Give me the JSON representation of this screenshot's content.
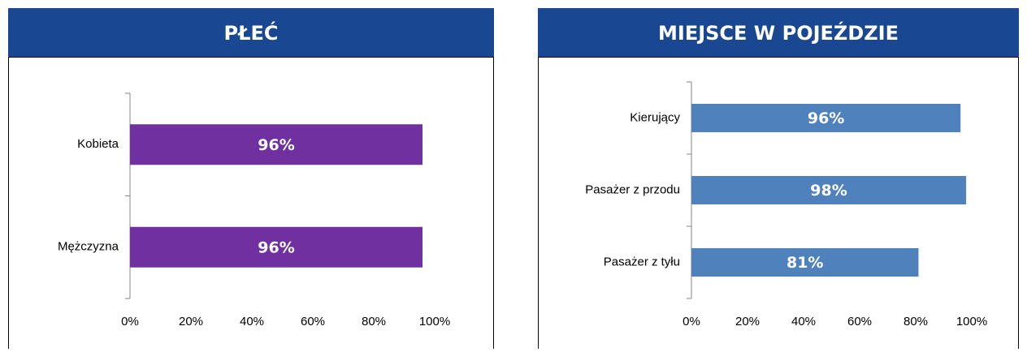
{
  "chart_data": [
    {
      "type": "bar",
      "orientation": "horizontal",
      "title": "PŁEĆ",
      "categories": [
        "Kobieta",
        "Mężczyzna"
      ],
      "values": [
        96,
        96
      ],
      "value_labels": [
        "96%",
        "96%"
      ],
      "color": "#7030a0",
      "xlim": [
        0,
        100
      ],
      "xticks": [
        {
          "value": 0,
          "label": "0%"
        },
        {
          "value": 20,
          "label": "20%"
        },
        {
          "value": 40,
          "label": "40%"
        },
        {
          "value": 60,
          "label": "60%"
        },
        {
          "value": 80,
          "label": "80%"
        },
        {
          "value": 100,
          "label": "100%"
        }
      ]
    },
    {
      "type": "bar",
      "orientation": "horizontal",
      "title": "MIEJSCE W POJEŹDZIE",
      "categories": [
        "Kierujący",
        "Pasażer z przodu",
        "Pasażer z tyłu"
      ],
      "values": [
        96,
        98,
        81
      ],
      "value_labels": [
        "96%",
        "98%",
        "81%"
      ],
      "color": "#4f81bd",
      "xlim": [
        0,
        100
      ],
      "xticks": [
        {
          "value": 0,
          "label": "0%"
        },
        {
          "value": 20,
          "label": "20%"
        },
        {
          "value": 40,
          "label": "40%"
        },
        {
          "value": 60,
          "label": "60%"
        },
        {
          "value": 80,
          "label": "80%"
        },
        {
          "value": 100,
          "label": "100%"
        }
      ]
    }
  ]
}
